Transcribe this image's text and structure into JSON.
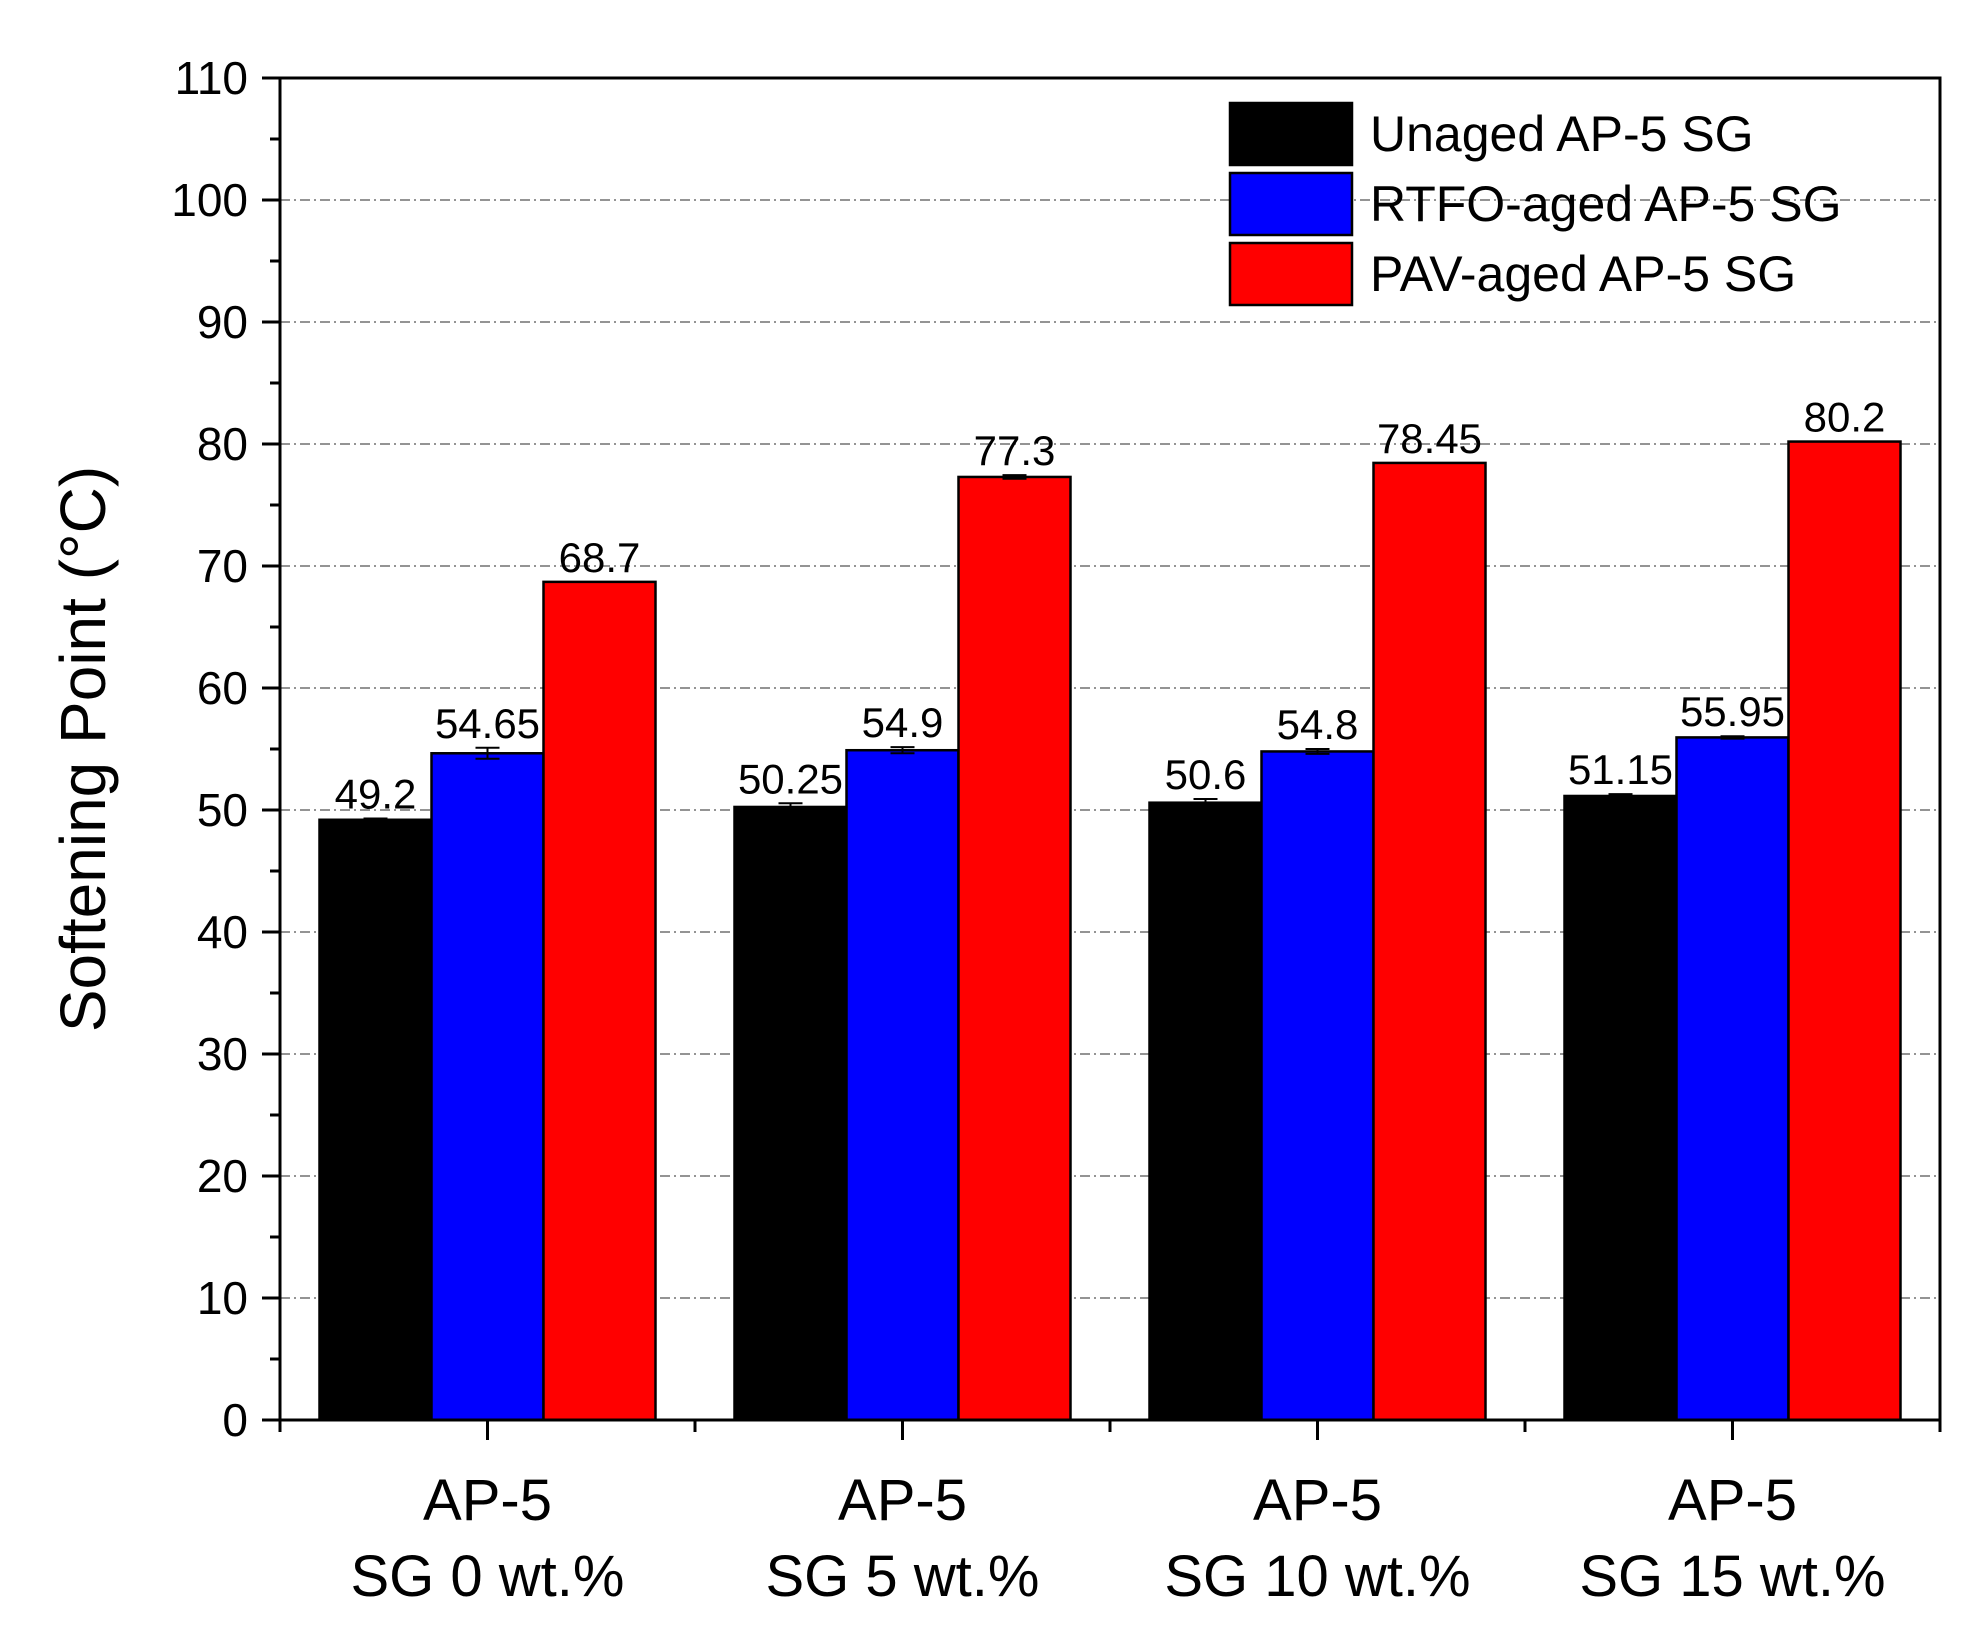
{
  "chart_data": {
    "type": "bar",
    "title": "",
    "xlabel": "",
    "ylabel": "Softening Point (°C)",
    "ylim": [
      0,
      110
    ],
    "yticks": [
      0,
      10,
      20,
      30,
      40,
      50,
      60,
      70,
      80,
      90,
      100,
      110
    ],
    "grid": true,
    "legend_position": "top-right",
    "categories": [
      [
        "AP-5",
        "SG 0 wt.%"
      ],
      [
        "AP-5",
        "SG 5 wt.%"
      ],
      [
        "AP-5",
        "SG 10 wt.%"
      ],
      [
        "AP-5",
        "SG 15 wt.%"
      ]
    ],
    "series": [
      {
        "name": "Unaged AP-5 SG",
        "color": "#000000",
        "values": [
          49.2,
          50.25,
          50.6,
          51.15
        ],
        "labels": [
          "49.2",
          "50.25",
          "50.6",
          "51.15"
        ],
        "errors": [
          0.1,
          0.3,
          0.3,
          0.15
        ]
      },
      {
        "name": "RTFO-aged AP-5 SG",
        "color": "#0000ff",
        "values": [
          54.65,
          54.9,
          54.8,
          55.95
        ],
        "labels": [
          "54.65",
          "54.9",
          "54.8",
          "55.95"
        ],
        "errors": [
          0.45,
          0.25,
          0.2,
          0.1
        ]
      },
      {
        "name": "PAV-aged AP-5 SG",
        "color": "#ff0000",
        "values": [
          68.7,
          77.3,
          78.45,
          80.2
        ],
        "labels": [
          "68.7",
          "77.3",
          "78.45",
          "80.2"
        ],
        "errors": [
          0.0,
          0.15,
          0.0,
          0.0
        ]
      }
    ]
  }
}
